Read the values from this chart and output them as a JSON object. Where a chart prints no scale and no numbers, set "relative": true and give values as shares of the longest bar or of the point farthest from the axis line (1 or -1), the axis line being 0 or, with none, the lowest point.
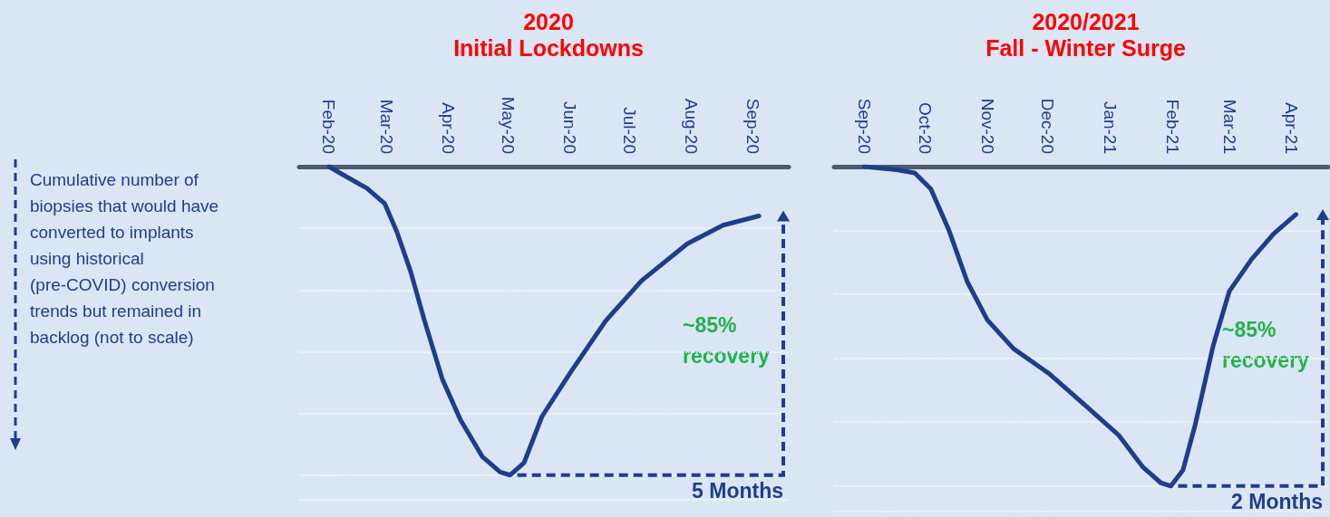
{
  "chart_data": [
    {
      "type": "line",
      "title": "2020",
      "subtitle": "Initial Lockdowns",
      "ylabel": "Cumulative number of biopsies that would have converted to implants using historical (pre-COVID) conversion trends but remained in backlog (not to scale)",
      "relative": true,
      "marker": "none",
      "grid": "y",
      "color": "#1f3d8c",
      "x": [
        "2020-02-01",
        "2020-02-09",
        "2020-02-20",
        "2020-02-29",
        "2020-03-06",
        "2020-03-13",
        "2020-03-20",
        "2020-03-29",
        "2020-04-07",
        "2020-04-18",
        "2020-04-27",
        "2020-05-02",
        "2020-05-09",
        "2020-05-18",
        "2020-06-01",
        "2020-06-19",
        "2020-07-07",
        "2020-07-30",
        "2020-08-17",
        "2020-09-04"
      ],
      "values": [
        0,
        -0.03,
        -0.07,
        -0.12,
        -0.21,
        -0.34,
        -0.5,
        -0.69,
        -0.82,
        -0.94,
        -0.99,
        -1,
        -0.96,
        -0.81,
        -0.67,
        -0.5,
        -0.37,
        -0.25,
        -0.19,
        -0.16
      ],
      "xlim": [
        "2020-01-17",
        "2020-09-19"
      ],
      "xticks": [
        {
          "value": "2020-02-01",
          "label": "Feb-20"
        },
        {
          "value": "2020-03-01",
          "label": "Mar-20"
        },
        {
          "value": "2020-04-01",
          "label": "Apr-20"
        },
        {
          "value": "2020-05-01",
          "label": "May-20"
        },
        {
          "value": "2020-06-01",
          "label": "Jun-20"
        },
        {
          "value": "2020-07-01",
          "label": "Jul-20"
        },
        {
          "value": "2020-08-01",
          "label": "Aug-20"
        },
        {
          "value": "2020-09-01",
          "label": "Sep-20"
        }
      ],
      "annotations": [
        "~85% recovery",
        "5 Months"
      ]
    },
    {
      "type": "line",
      "title": "2020/2021",
      "subtitle": "Fall - Winter Surge",
      "relative": true,
      "marker": "none",
      "grid": "y",
      "color": "#1f3d8c",
      "x": [
        "2020-09-01",
        "2020-09-17",
        "2020-09-26",
        "2020-10-04",
        "2020-10-13",
        "2020-10-22",
        "2020-11-01",
        "2020-11-14",
        "2020-12-02",
        "2020-12-20",
        "2021-01-05",
        "2021-01-17",
        "2021-01-26",
        "2021-01-31",
        "2021-02-06",
        "2021-02-12",
        "2021-02-21",
        "2021-03-01",
        "2021-03-12",
        "2021-03-23",
        "2021-04-03"
      ],
      "values": [
        0,
        -0.01,
        -0.02,
        -0.07,
        -0.2,
        -0.36,
        -0.48,
        -0.57,
        -0.65,
        -0.75,
        -0.84,
        -0.94,
        -0.99,
        -1,
        -0.95,
        -0.81,
        -0.56,
        -0.39,
        -0.29,
        -0.21,
        -0.15
      ],
      "xlim": [
        "2020-08-17",
        "2021-04-19"
      ],
      "xticks": [
        {
          "value": "2020-09-01",
          "label": "Sep-20"
        },
        {
          "value": "2020-10-01",
          "label": "Oct-20"
        },
        {
          "value": "2020-11-01",
          "label": "Nov-20"
        },
        {
          "value": "2020-12-01",
          "label": "Dec-20"
        },
        {
          "value": "2021-01-01",
          "label": "Jan-21"
        },
        {
          "value": "2021-02-01",
          "label": "Feb-21"
        },
        {
          "value": "2021-03-01",
          "label": "Mar-21"
        },
        {
          "value": "2021-04-01",
          "label": "Apr-21"
        }
      ],
      "annotations": [
        "~85% recovery",
        "2 Months"
      ]
    }
  ]
}
